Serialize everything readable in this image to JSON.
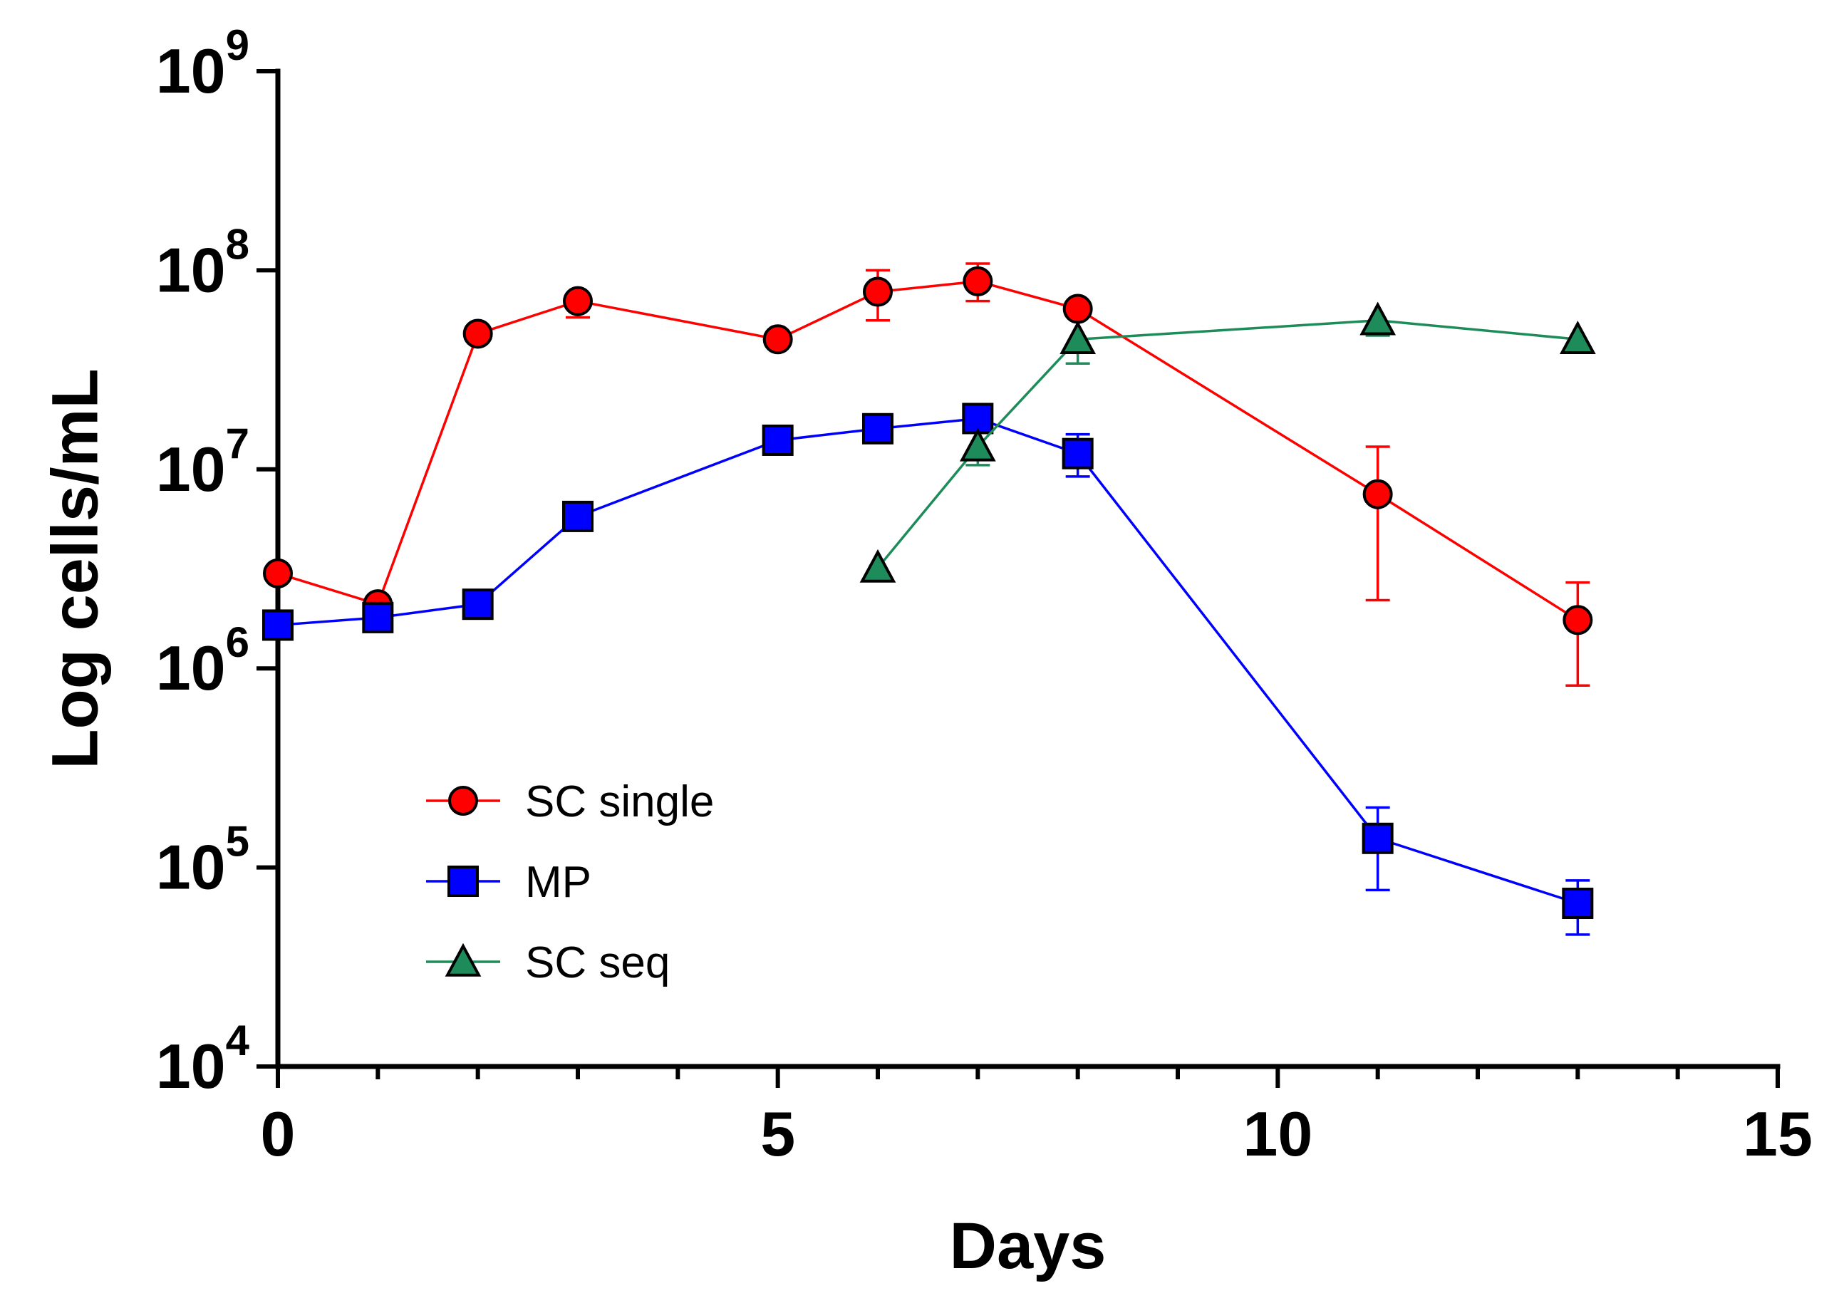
{
  "chart_data": {
    "type": "line",
    "title": "",
    "xlabel": "Days",
    "ylabel": "Log cells/mL",
    "xlim": [
      0,
      15
    ],
    "ylim": [
      10000,
      1000000000
    ],
    "yscale": "log",
    "grid": false,
    "legend_position": "lower-left",
    "x_ticks": [
      {
        "value": 0,
        "label": "0"
      },
      {
        "value": 5,
        "label": "5"
      },
      {
        "value": 10,
        "label": "10"
      },
      {
        "value": 15,
        "label": "15"
      }
    ],
    "y_ticks": [
      {
        "value": 10000,
        "base": "10",
        "exp": "4"
      },
      {
        "value": 100000,
        "base": "10",
        "exp": "5"
      },
      {
        "value": 1000000,
        "base": "10",
        "exp": "6"
      },
      {
        "value": 10000000,
        "base": "10",
        "exp": "7"
      },
      {
        "value": 100000000,
        "base": "10",
        "exp": "8"
      },
      {
        "value": 1000000000,
        "base": "10",
        "exp": "9"
      }
    ],
    "series": [
      {
        "name": "SC single",
        "color": "#ff0000",
        "marker": "circle",
        "points": [
          {
            "x": 0,
            "y": 3000000
          },
          {
            "x": 1,
            "y": 2100000
          },
          {
            "x": 2,
            "y": 48000000
          },
          {
            "x": 3,
            "y": 70000000,
            "lo": 58000000,
            "hi": 70000000
          },
          {
            "x": 5,
            "y": 45000000
          },
          {
            "x": 6,
            "y": 78000000,
            "lo": 56000000,
            "hi": 100000000
          },
          {
            "x": 7,
            "y": 88000000,
            "lo": 70000000,
            "hi": 108000000
          },
          {
            "x": 8,
            "y": 64000000
          },
          {
            "x": 11,
            "y": 7500000,
            "lo": 2200000,
            "hi": 13000000
          },
          {
            "x": 13,
            "y": 1750000,
            "lo": 820000,
            "hi": 2700000
          }
        ]
      },
      {
        "name": "MP",
        "color": "#0000ff",
        "marker": "square",
        "points": [
          {
            "x": 0,
            "y": 1650000
          },
          {
            "x": 1,
            "y": 1800000
          },
          {
            "x": 2,
            "y": 2100000
          },
          {
            "x": 3,
            "y": 5800000
          },
          {
            "x": 5,
            "y": 14000000
          },
          {
            "x": 6,
            "y": 16000000
          },
          {
            "x": 7,
            "y": 18000000
          },
          {
            "x": 8,
            "y": 12000000,
            "lo": 9200000,
            "hi": 15000000
          },
          {
            "x": 11,
            "y": 140000,
            "lo": 77000,
            "hi": 200000
          },
          {
            "x": 13,
            "y": 66000,
            "lo": 46000,
            "hi": 86000
          }
        ]
      },
      {
        "name": "SC seq",
        "color": "#1e8c5a",
        "marker": "triangle",
        "points": [
          {
            "x": 6,
            "y": 3200000
          },
          {
            "x": 7,
            "y": 13000000,
            "lo": 10500000,
            "hi": 13000000
          },
          {
            "x": 8,
            "y": 45000000,
            "lo": 34000000,
            "hi": 45000000
          },
          {
            "x": 11,
            "y": 56000000,
            "lo": 47000000,
            "hi": 56000000
          },
          {
            "x": 13,
            "y": 45000000
          }
        ]
      }
    ]
  }
}
